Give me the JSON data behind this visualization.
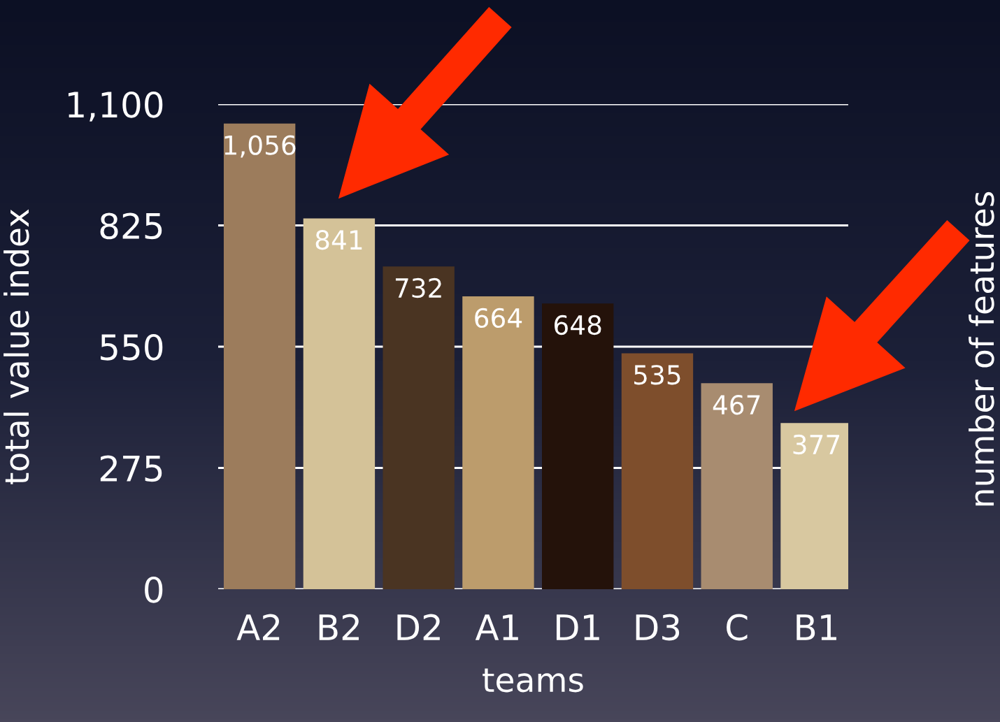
{
  "chart_data": {
    "type": "bar",
    "xlabel": "teams",
    "ylabel": "total value index",
    "y2label": "number of features",
    "categories": [
      "A2",
      "B2",
      "D2",
      "A1",
      "D1",
      "D3",
      "C",
      "B1"
    ],
    "values": [
      1056,
      841,
      732,
      664,
      648,
      535,
      467,
      377
    ],
    "colors": [
      "#9c7c5c",
      "#d4c298",
      "#4a3422",
      "#bc9c6c",
      "#24120a",
      "#7e4e2c",
      "#a88c70",
      "#d8c8a0"
    ],
    "value_labels": [
      "1,056",
      "841",
      "732",
      "664",
      "648",
      "535",
      "467",
      "377"
    ],
    "ylim": [
      0,
      1100
    ],
    "yticks": [
      0,
      275,
      550,
      825,
      {
        "value": 1100,
        "label": "1,100"
      }
    ],
    "grid": "y"
  }
}
